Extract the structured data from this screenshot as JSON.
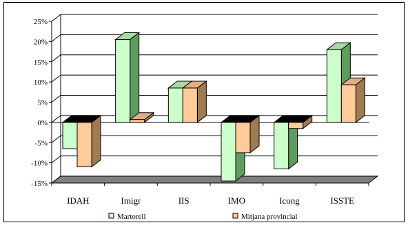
{
  "chart_data": {
    "type": "bar",
    "style": "3d-clustered-column",
    "categories": [
      "IDAH",
      "Imigr",
      "IIS",
      "IMO",
      "Icong",
      "ISSTE"
    ],
    "series": [
      {
        "name": "Martorell",
        "values": [
          -6.5,
          20.5,
          8.5,
          -14.5,
          -11.5,
          18.0
        ]
      },
      {
        "name": "Mitjana provincial",
        "values": [
          -11.0,
          0.7,
          8.5,
          -7.5,
          -1.5,
          9.3
        ]
      }
    ],
    "ylim": [
      -15,
      25
    ],
    "yticks": [
      -15,
      -10,
      -5,
      0,
      5,
      10,
      15,
      20,
      25
    ],
    "ytick_labels": [
      "-15%",
      "-10%",
      "-5%",
      "0%",
      "5%",
      "10%",
      "15%",
      "20%",
      "25%"
    ],
    "grid": true,
    "legend_position": "bottom",
    "colors": {
      "Martorell": {
        "front": "#ccffcc",
        "side": "#5f9d5f",
        "top": "#a7d9a7"
      },
      "Mitjana provincial": {
        "front": "#ffcc99",
        "side": "#a07a50",
        "top": "#e0b07e"
      },
      "floor": "#808080",
      "wall": "#ffffff"
    }
  }
}
